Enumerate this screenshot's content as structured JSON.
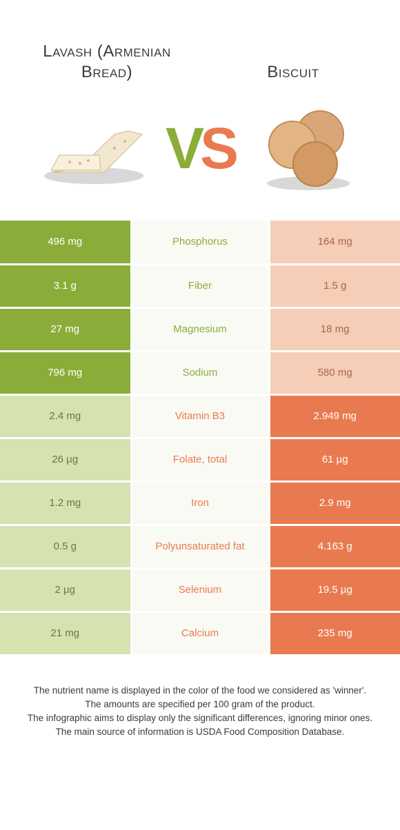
{
  "colors": {
    "green": "#8aad3a",
    "green_light": "#d6e2b0",
    "orange": "#e97a4f",
    "orange_light": "#f6cdb7",
    "mid_bg": "#f9faf4"
  },
  "left_food": {
    "title": "Lavash (Armenian Bread)"
  },
  "right_food": {
    "title": "Biscuit"
  },
  "vs": {
    "v": "V",
    "s": "S"
  },
  "rows": [
    {
      "nutrient": "Phosphorus",
      "left": "496 mg",
      "right": "164 mg",
      "winner": "left"
    },
    {
      "nutrient": "Fiber",
      "left": "3.1 g",
      "right": "1.5 g",
      "winner": "left"
    },
    {
      "nutrient": "Magnesium",
      "left": "27 mg",
      "right": "18 mg",
      "winner": "left"
    },
    {
      "nutrient": "Sodium",
      "left": "796 mg",
      "right": "580 mg",
      "winner": "left"
    },
    {
      "nutrient": "Vitamin B3",
      "left": "2.4 mg",
      "right": "2.949 mg",
      "winner": "right"
    },
    {
      "nutrient": "Folate, total",
      "left": "26 µg",
      "right": "61 µg",
      "winner": "right"
    },
    {
      "nutrient": "Iron",
      "left": "1.2 mg",
      "right": "2.9 mg",
      "winner": "right"
    },
    {
      "nutrient": "Polyunsaturated fat",
      "left": "0.5 g",
      "right": "4.163 g",
      "winner": "right"
    },
    {
      "nutrient": "Selenium",
      "left": "2 µg",
      "right": "19.5 µg",
      "winner": "right"
    },
    {
      "nutrient": "Calcium",
      "left": "21 mg",
      "right": "235 mg",
      "winner": "right"
    }
  ],
  "footer": {
    "l1": "The nutrient name is displayed in the color of the food we considered as 'winner'.",
    "l2": "The amounts are specified per 100 gram of the product.",
    "l3": "The infographic aims to display only the significant differences, ignoring minor ones.",
    "l4": "The main source of information is USDA Food Composition Database."
  }
}
